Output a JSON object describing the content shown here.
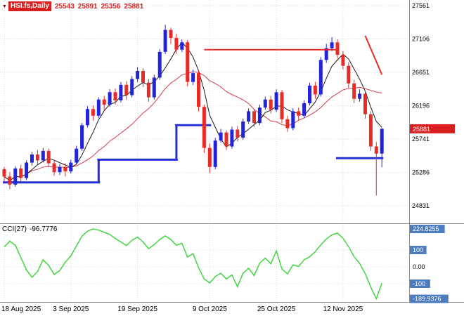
{
  "header": {
    "dropdown_icon": "▼",
    "symbol": "HSI.fs,Daily",
    "open": "25543",
    "high": "25891",
    "low": "25356",
    "close": "25881"
  },
  "indicator": {
    "label": "CCI(27)",
    "value": "-96.7776"
  },
  "colors": {
    "bullish": "#2323d9",
    "bearish": "#e82b27",
    "ma_fast": "#1a1a1a",
    "ma_slow": "#d23b4b",
    "support": "#2330d4",
    "cci": "#3fd63f",
    "grid": "#d9d9d9",
    "chip_red": "#d91f1f",
    "chip_blue": "#4d7cbe",
    "axis_text": "#000000",
    "separator": "#8a8a8a"
  },
  "chart_data": {
    "type": "candlestick",
    "title": "HSI.fs Daily candlestick chart with moving averages, support steps and CCI(27) sub-chart",
    "price_pane": {
      "y_ticks": [
        27561,
        27106,
        26651,
        26196,
        25741,
        25286,
        24831
      ],
      "current_price": 25881,
      "current_price_label": "25881",
      "candles": [
        [
          25330,
          25360,
          25150,
          25230
        ],
        [
          25230,
          25290,
          25060,
          25120
        ],
        [
          25120,
          25370,
          25090,
          25340
        ],
        [
          25340,
          25390,
          25160,
          25210
        ],
        [
          25210,
          25450,
          25180,
          25420
        ],
        [
          25420,
          25570,
          25380,
          25530
        ],
        [
          25530,
          25590,
          25400,
          25450
        ],
        [
          25450,
          25620,
          25420,
          25580
        ],
        [
          25580,
          25610,
          25370,
          25410
        ],
        [
          25410,
          25460,
          25240,
          25290
        ],
        [
          25290,
          25400,
          25250,
          25360
        ],
        [
          25360,
          25410,
          25230,
          25300
        ],
        [
          25300,
          25460,
          25270,
          25420
        ],
        [
          25420,
          25650,
          25400,
          25610
        ],
        [
          25610,
          25960,
          25580,
          25930
        ],
        [
          25930,
          26190,
          25900,
          26150
        ],
        [
          26150,
          26200,
          25990,
          26060
        ],
        [
          26060,
          26310,
          26030,
          26280
        ],
        [
          26280,
          26330,
          26130,
          26210
        ],
        [
          26210,
          26420,
          26180,
          26380
        ],
        [
          26380,
          26430,
          26210,
          26270
        ],
        [
          26270,
          26520,
          26240,
          26480
        ],
        [
          26480,
          26530,
          26280,
          26340
        ],
        [
          26340,
          26600,
          26310,
          26560
        ],
        [
          26560,
          26720,
          26520,
          26670
        ],
        [
          26670,
          26710,
          26450,
          26510
        ],
        [
          26510,
          26560,
          26250,
          26310
        ],
        [
          26310,
          26620,
          26280,
          26580
        ],
        [
          26580,
          26970,
          26550,
          26930
        ],
        [
          26930,
          27300,
          26900,
          27230
        ],
        [
          27230,
          27260,
          27040,
          27120
        ],
        [
          27120,
          27180,
          26900,
          26960
        ],
        [
          26960,
          27100,
          26930,
          27060
        ],
        [
          27060,
          27090,
          26460,
          26520
        ],
        [
          26520,
          26690,
          26480,
          26640
        ],
        [
          26640,
          26670,
          26120,
          26180
        ],
        [
          26180,
          26210,
          25550,
          25620
        ],
        [
          25620,
          25680,
          25280,
          25360
        ],
        [
          25360,
          25760,
          25330,
          25720
        ],
        [
          25720,
          25880,
          25690,
          25830
        ],
        [
          25830,
          25860,
          25590,
          25640
        ],
        [
          25640,
          25910,
          25610,
          25870
        ],
        [
          25870,
          25920,
          25710,
          25760
        ],
        [
          25760,
          26020,
          25730,
          25980
        ],
        [
          25980,
          26160,
          25950,
          26120
        ],
        [
          26120,
          26150,
          25910,
          25960
        ],
        [
          25960,
          26210,
          25930,
          26170
        ],
        [
          26170,
          26320,
          26140,
          26280
        ],
        [
          26280,
          26330,
          26090,
          26140
        ],
        [
          26140,
          26420,
          26110,
          26380
        ],
        [
          26380,
          26410,
          25960,
          26010
        ],
        [
          26010,
          26060,
          25840,
          25890
        ],
        [
          25890,
          26160,
          25860,
          26120
        ],
        [
          26120,
          26170,
          26000,
          26060
        ],
        [
          26060,
          26270,
          26030,
          26230
        ],
        [
          26230,
          26510,
          26200,
          26470
        ],
        [
          26470,
          26520,
          26290,
          26350
        ],
        [
          26350,
          26860,
          26320,
          26820
        ],
        [
          26820,
          27040,
          26780,
          26980
        ],
        [
          26980,
          27130,
          26940,
          27060
        ],
        [
          27060,
          27100,
          26840,
          26890
        ],
        [
          26890,
          26940,
          26690,
          26740
        ],
        [
          26740,
          26790,
          26440,
          26500
        ],
        [
          26500,
          26550,
          26230,
          26290
        ],
        [
          26290,
          26420,
          26250,
          26360
        ],
        [
          26360,
          26400,
          26020,
          26080
        ],
        [
          26080,
          26120,
          25580,
          25640
        ],
        [
          25640,
          25700,
          24970,
          25543
        ],
        [
          25543,
          25891,
          25356,
          25881
        ]
      ],
      "support_segments": [
        {
          "from": 0,
          "to": 17,
          "price": 25150,
          "connect_prev": false
        },
        {
          "from": 17,
          "to": 31,
          "price": 25460,
          "connect_prev": true
        },
        {
          "from": 31,
          "to": 37,
          "price": 25930,
          "connect_prev": true
        },
        {
          "from": 60,
          "to": 68,
          "price": 25480,
          "connect_prev": false
        }
      ],
      "resistance_line": {
        "from": 36,
        "to": 60,
        "price": 26960
      },
      "trend_line": {
        "from_index": 65,
        "from_price": 27150,
        "to_index": 68,
        "to_price": 26620
      }
    },
    "cci_pane": {
      "levels": [
        100,
        -100
      ],
      "values": [
        118,
        152,
        128,
        55,
        -18,
        -62,
        -28,
        42,
        8,
        -45,
        -22,
        28,
        65,
        124,
        182,
        212,
        224.8255,
        218,
        205,
        192,
        168,
        148,
        126,
        158,
        176,
        148,
        108,
        132,
        162,
        184,
        162,
        128,
        140,
        58,
        78,
        -5,
        -72,
        -96,
        -58,
        -38,
        -72,
        -48,
        -118,
        -38,
        -8,
        -52,
        22,
        52,
        18,
        95,
        -12,
        -42,
        12,
        2,
        42,
        60,
        90,
        130,
        165,
        190,
        200,
        170,
        120,
        60,
        20,
        -40,
        -120,
        -189.9376,
        -96.7776
      ],
      "axis_labels": [
        {
          "label": "224.8255",
          "value": 224.8255,
          "chip": true
        },
        {
          "label": "100",
          "value": 100,
          "chip": true
        },
        {
          "label": "0.00",
          "value": 0,
          "chip": false
        },
        {
          "label": "-100",
          "value": -100,
          "chip": true
        },
        {
          "label": "-189.9376",
          "value": -189.9376,
          "chip": true
        }
      ]
    },
    "x_labels": [
      {
        "label": "18 Aug 2025",
        "index": 0
      },
      {
        "label": "3 Sep 2025",
        "index": 12
      },
      {
        "label": "19 Sep 2025",
        "index": 24
      },
      {
        "label": "9 Oct 2025",
        "index": 37
      },
      {
        "label": "25 Oct 2025",
        "index": 49
      },
      {
        "label": "12 Nov 2025",
        "index": 61
      }
    ]
  }
}
